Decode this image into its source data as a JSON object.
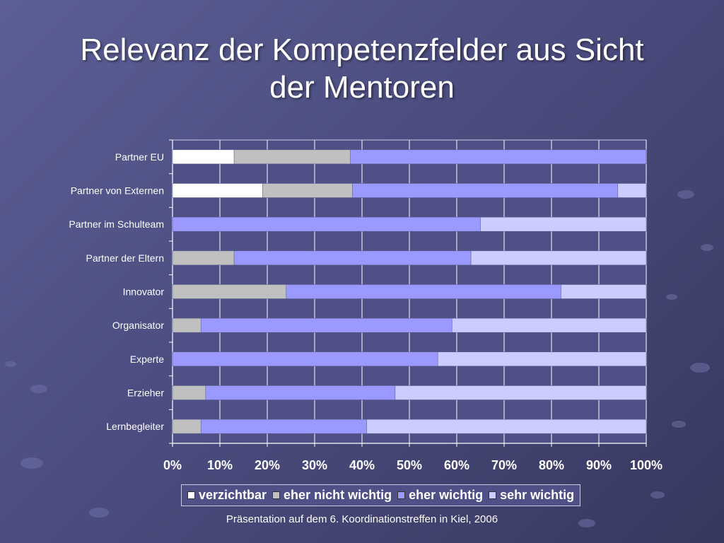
{
  "slide": {
    "title_line1": "Relevanz der Kompetenzfelder aus Sicht",
    "title_line2": "der Mentoren",
    "footer": "Präsentation auf dem 6. Koordinationstreffen in Kiel, 2006"
  },
  "chart_data": {
    "type": "bar",
    "orientation": "horizontal",
    "stacked": "percent",
    "categories": [
      "Partner EU",
      "Partner von Externen",
      "Partner im Schulteam",
      "Partner der Eltern",
      "Innovator",
      "Organisator",
      "Experte",
      "Erzieher",
      "Lernbegleiter"
    ],
    "series": [
      {
        "name": "verzichtbar",
        "color": "#ffffff",
        "values": [
          13,
          19,
          0,
          0,
          0,
          0,
          0,
          0,
          0
        ]
      },
      {
        "name": "eher nicht wichtig",
        "color": "#c0c0c0",
        "values": [
          24.5,
          19,
          0,
          13,
          24,
          6,
          0,
          7,
          6
        ]
      },
      {
        "name": "eher wichtig",
        "color": "#9999ff",
        "values": [
          62.5,
          56,
          65,
          50,
          58,
          53,
          56,
          40,
          35
        ]
      },
      {
        "name": "sehr wichtig",
        "color": "#ccccff",
        "values": [
          0,
          6,
          35,
          37,
          18,
          41,
          44,
          53,
          59
        ]
      }
    ],
    "xticks": [
      "0%",
      "10%",
      "20%",
      "30%",
      "40%",
      "50%",
      "60%",
      "70%",
      "80%",
      "90%",
      "100%"
    ],
    "xlim": [
      0,
      100
    ],
    "grid": true,
    "legend_position": "bottom",
    "plot_background": "#4f5186",
    "grid_color": "#e0e0f0"
  }
}
